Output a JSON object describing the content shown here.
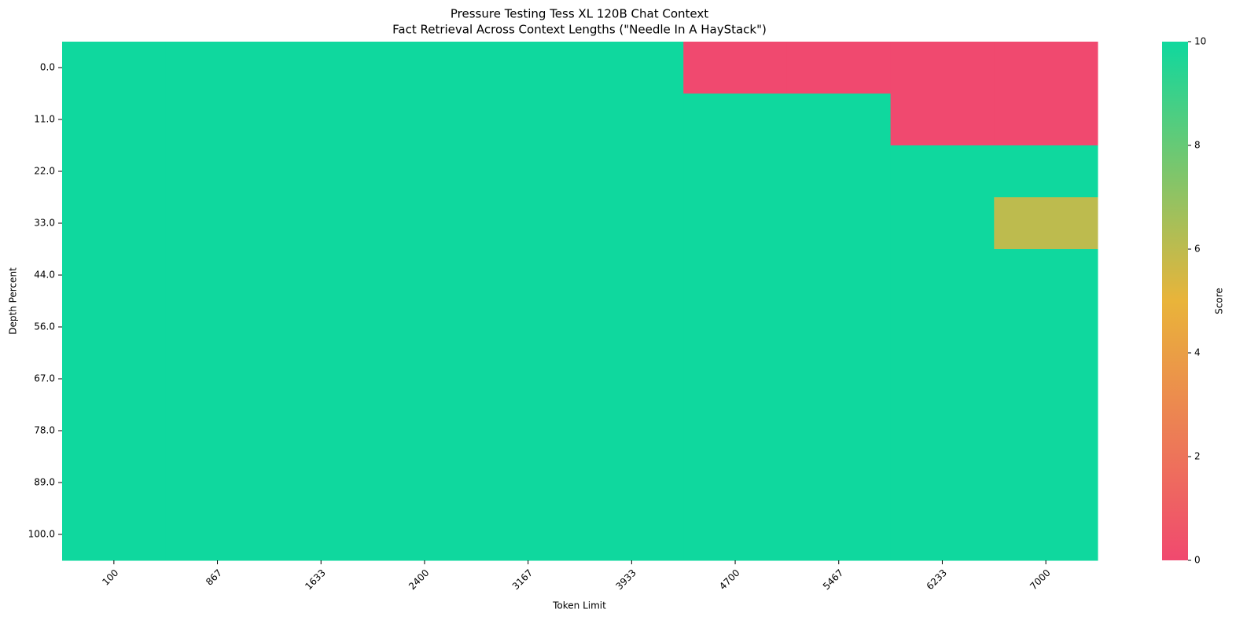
{
  "chart_data": {
    "type": "heatmap",
    "title": "Pressure Testing Tess XL 120B Chat Context",
    "subtitle": "Fact Retrieval Across Context Lengths (\"Needle In A HayStack\")",
    "x_label": "Token Limit",
    "y_label": "Depth Percent",
    "colorbar_label": "Score",
    "x": [
      "100",
      "867",
      "1633",
      "2400",
      "3167",
      "3933",
      "4700",
      "5467",
      "6233",
      "7000"
    ],
    "y": [
      "0.0",
      "11.0",
      "22.0",
      "33.0",
      "44.0",
      "56.0",
      "67.0",
      "78.0",
      "89.0",
      "100.0"
    ],
    "values": [
      [
        10,
        10,
        10,
        10,
        10,
        10,
        0,
        0,
        0,
        0
      ],
      [
        10,
        10,
        10,
        10,
        10,
        10,
        10,
        10,
        0,
        0
      ],
      [
        10,
        10,
        10,
        10,
        10,
        10,
        10,
        10,
        10,
        10
      ],
      [
        10,
        10,
        10,
        10,
        10,
        10,
        10,
        10,
        10,
        6
      ],
      [
        10,
        10,
        10,
        10,
        10,
        10,
        10,
        10,
        10,
        10
      ],
      [
        10,
        10,
        10,
        10,
        10,
        10,
        10,
        10,
        10,
        10
      ],
      [
        10,
        10,
        10,
        10,
        10,
        10,
        10,
        10,
        10,
        10
      ],
      [
        10,
        10,
        10,
        10,
        10,
        10,
        10,
        10,
        10,
        10
      ],
      [
        10,
        10,
        10,
        10,
        10,
        10,
        10,
        10,
        10,
        10
      ],
      [
        10,
        10,
        10,
        10,
        10,
        10,
        10,
        10,
        10,
        10
      ]
    ],
    "colormap": [
      "#f0496f",
      "#e9b43a",
      "#0fd89e"
    ],
    "clim": [
      0,
      10
    ],
    "cticks": [
      0,
      2,
      4,
      6,
      8,
      10
    ]
  }
}
